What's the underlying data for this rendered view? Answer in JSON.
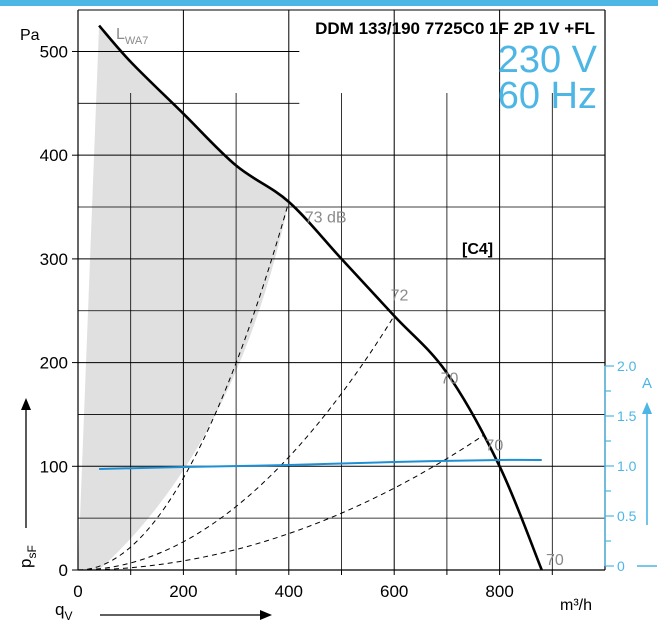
{
  "colors": {
    "accent": "#4db6e4",
    "top_bar": "#4db6e4",
    "pressure_curve": "#000000",
    "current_curve": "#1f8fd4",
    "dB_label": "#8a8a8a",
    "shaded_area": "#e0e0e0"
  },
  "chart_data": {
    "type": "line",
    "title": "DDM 133/190 7725C0 1F 2P 1V +FL",
    "voltage": "230 V",
    "frequency": "60 Hz",
    "curve_tag": "[C4]",
    "lwa_label": "L",
    "lwa_subscript": "WA7",
    "x_axis": {
      "unit": "m³/h",
      "label_main": "q",
      "label_sub": "V",
      "range": [
        0,
        1000
      ],
      "ticks": [
        0,
        200,
        400,
        600,
        800
      ],
      "tick_labels": [
        "0",
        "200",
        "400",
        "600",
        "800"
      ],
      "grid": true
    },
    "y_axis_left": {
      "unit": "Pa",
      "label_main": "p",
      "label_sub": "sF",
      "range": [
        0,
        540
      ],
      "ticks": [
        0,
        100,
        200,
        300,
        400,
        500
      ],
      "tick_labels": [
        "0",
        "100",
        "200",
        "300",
        "400",
        "500"
      ],
      "grid": true
    },
    "y_axis_right": {
      "unit": "A",
      "range": [
        0,
        2.0
      ],
      "ticks": [
        0,
        0.5,
        1.0,
        1.5,
        2.0
      ],
      "tick_labels": [
        "0",
        "0.5",
        "1.0",
        "1.5",
        "2.0"
      ]
    },
    "series": [
      {
        "role": "pressure",
        "axis": "left",
        "x": [
          40,
          100,
          200,
          300,
          400,
          500,
          600,
          700,
          800,
          880
        ],
        "y": [
          525,
          490,
          440,
          390,
          355,
          300,
          245,
          190,
          100,
          0
        ]
      },
      {
        "role": "current",
        "axis": "right",
        "x": [
          40,
          200,
          400,
          600,
          800,
          880
        ],
        "y": [
          0.97,
          0.99,
          1.01,
          1.04,
          1.06,
          1.06
        ]
      }
    ],
    "system_curves": [
      {
        "x_end": 400,
        "y_end": 355
      },
      {
        "x_end": 600,
        "y_end": 245
      },
      {
        "x_end": 770,
        "y_end": 130
      }
    ],
    "shaded_region": {
      "left_x": [
        0,
        40
      ],
      "upper_curve_x": [
        40,
        100,
        200,
        300,
        400
      ],
      "upper_curve_y": [
        525,
        490,
        440,
        390,
        355
      ]
    },
    "dB_labels": [
      {
        "text": "73 dB",
        "x": 470,
        "y": 335
      },
      {
        "text": "72",
        "x": 610,
        "y": 260
      },
      {
        "text": "70",
        "x": 705,
        "y": 180
      },
      {
        "text": "70",
        "x": 790,
        "y": 115
      },
      {
        "text": "70",
        "x": 905,
        "y": 5
      }
    ]
  }
}
